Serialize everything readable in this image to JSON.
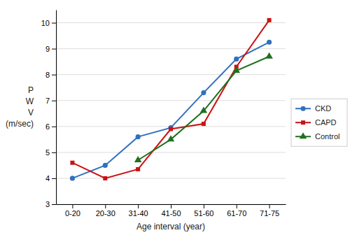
{
  "chart_data": {
    "type": "line",
    "categories": [
      "0-20",
      "20-30",
      "31-40",
      "41-50",
      "51-60",
      "61-70",
      "71-75"
    ],
    "series": [
      {
        "name": "CKD",
        "color": "#3070C0",
        "marker": "circle",
        "values": [
          4.0,
          4.5,
          5.6,
          5.95,
          7.3,
          8.6,
          9.25
        ]
      },
      {
        "name": "CAPD",
        "color": "#CC1111",
        "marker": "square",
        "values": [
          4.6,
          4.0,
          4.35,
          5.9,
          6.1,
          8.3,
          10.1
        ]
      },
      {
        "name": "Control",
        "color": "#207020",
        "marker": "triangle",
        "values": [
          null,
          null,
          4.7,
          5.5,
          6.6,
          8.15,
          8.7
        ]
      }
    ],
    "xlabel": "Age interval (year)",
    "ylabel": "P\nW\nV\n(m/sec)",
    "ylim": [
      3,
      10.5
    ],
    "yticks": [
      3,
      4,
      5,
      6,
      7,
      8,
      9,
      10
    ],
    "grid": true,
    "legend": "right"
  }
}
